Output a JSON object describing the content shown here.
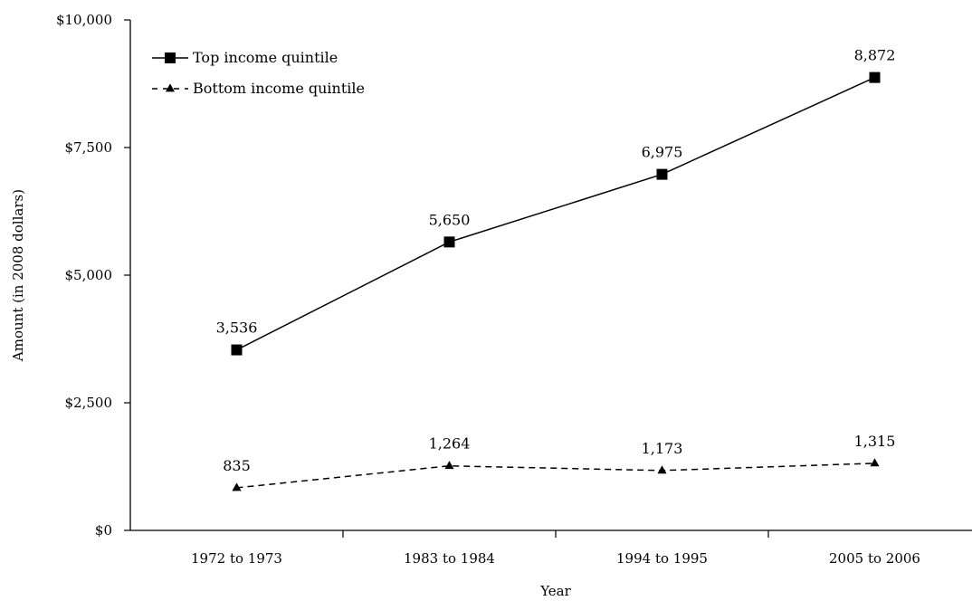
{
  "chart_data": {
    "type": "line",
    "title": "",
    "xlabel": "Year",
    "ylabel": "Amount (in 2008 dollars)",
    "categories": [
      "1972 to 1973",
      "1983 to 1984",
      "1994 to 1995",
      "2005 to 2006"
    ],
    "ylim": [
      0,
      10000
    ],
    "yticks": [
      {
        "value": 0,
        "label": "$0"
      },
      {
        "value": 2500,
        "label": "$2,500"
      },
      {
        "value": 5000,
        "label": "$5,000"
      },
      {
        "value": 7500,
        "label": "$7,500"
      },
      {
        "value": 10000,
        "label": "$10,000"
      }
    ],
    "grid": false,
    "legend_position": "top-left",
    "series": [
      {
        "name": "Top income quintile",
        "values": [
          3536,
          5650,
          6975,
          8872
        ],
        "labels": [
          "3,536",
          "5,650",
          "6,975",
          "8,872"
        ],
        "marker": "square",
        "line_style": "solid",
        "color": "#000000"
      },
      {
        "name": "Bottom income quintile",
        "values": [
          835,
          1264,
          1173,
          1315
        ],
        "labels": [
          "835",
          "1,264",
          "1,173",
          "1,315"
        ],
        "marker": "triangle",
        "line_style": "dashed",
        "color": "#000000"
      }
    ]
  }
}
